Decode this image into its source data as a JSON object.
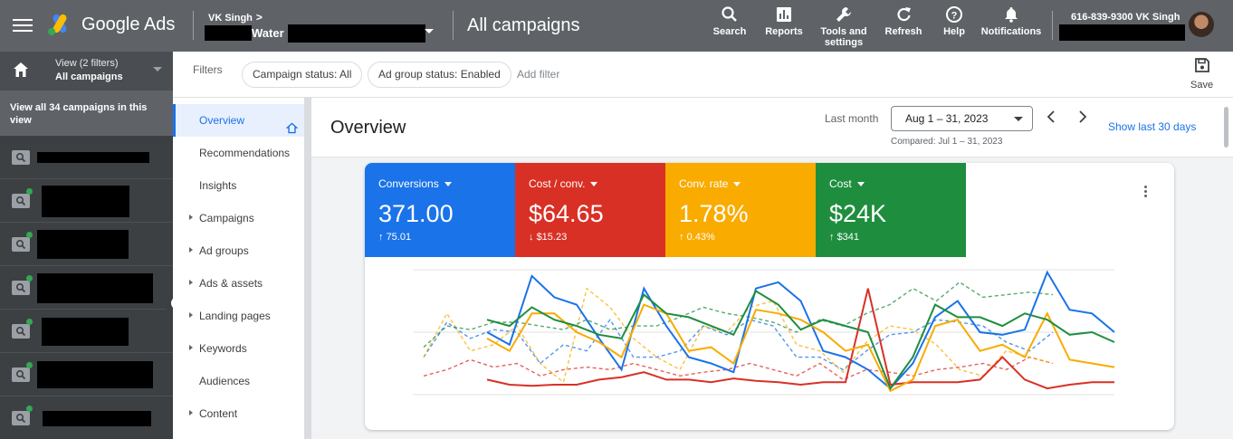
{
  "topbar": {
    "brand": "Google Ads",
    "account_name": "VK Singh",
    "account_sub": "Water",
    "page_title": "All campaigns",
    "tools": [
      {
        "label": "Search",
        "icon": "search-icon"
      },
      {
        "label": "Reports",
        "icon": "reports-icon"
      },
      {
        "label": "Tools and settings",
        "icon": "wrench-icon"
      },
      {
        "label": "Refresh",
        "icon": "refresh-icon"
      },
      {
        "label": "Help",
        "icon": "help-icon"
      },
      {
        "label": "Notifications",
        "icon": "bell-icon"
      }
    ],
    "user_line": "616-839-9300 VK Singh"
  },
  "sidebar": {
    "view_label": "View (2 filters)",
    "view_value": "All campaigns",
    "view_all": "View all 34 campaigns in this view"
  },
  "filters": {
    "label": "Filters",
    "chips": [
      "Campaign status: All",
      "Ad group status: Enabled"
    ],
    "add_filter": "Add filter",
    "save_label": "Save"
  },
  "nav": {
    "items": [
      {
        "label": "Overview",
        "active": true,
        "expandable": false
      },
      {
        "label": "Recommendations",
        "active": false,
        "expandable": false
      },
      {
        "label": "Insights",
        "active": false,
        "expandable": false
      },
      {
        "label": "Campaigns",
        "active": false,
        "expandable": true
      },
      {
        "label": "Ad groups",
        "active": false,
        "expandable": true
      },
      {
        "label": "Ads & assets",
        "active": false,
        "expandable": true
      },
      {
        "label": "Landing pages",
        "active": false,
        "expandable": true
      },
      {
        "label": "Keywords",
        "active": false,
        "expandable": true
      },
      {
        "label": "Audiences",
        "active": false,
        "expandable": false
      },
      {
        "label": "Content",
        "active": false,
        "expandable": true
      }
    ]
  },
  "overview": {
    "title": "Overview",
    "period_label": "Last month",
    "date_range": "Aug 1 – 31, 2023",
    "compared": "Compared: Jul 1 – 31, 2023",
    "show_last": "Show last 30 days"
  },
  "metrics": [
    {
      "name": "Conversions",
      "value": "371.00",
      "delta_arrow": "↑",
      "delta": "75.01",
      "color": "#1a73e8"
    },
    {
      "name": "Cost / conv.",
      "value": "$64.65",
      "delta_arrow": "↓",
      "delta": "$15.23",
      "color": "#d93025"
    },
    {
      "name": "Conv. rate",
      "value": "1.78%",
      "delta_arrow": "↑",
      "delta": "0.43%",
      "color": "#f9ab00"
    },
    {
      "name": "Cost",
      "value": "$24K",
      "delta_arrow": "↑",
      "delta": "$341",
      "color": "#1e8e3e"
    }
  ],
  "chart_data": {
    "type": "line",
    "y_range": [
      0,
      1
    ],
    "series": [
      {
        "color": "#1a73e8",
        "dashed": false,
        "values": [
          0.5,
          0.4,
          0.95,
          0.78,
          0.72,
          0.45,
          0.2,
          0.85,
          0.55,
          0.3,
          0.25,
          0.18,
          0.85,
          0.9,
          0.75,
          0.35,
          0.3,
          0.2,
          0.05,
          0.25,
          0.62,
          0.75,
          0.5,
          0.48,
          0.52,
          0.98,
          0.68,
          0.65,
          0.5
        ]
      },
      {
        "color": "#d93025",
        "dashed": false,
        "values": [
          0.12,
          0.08,
          0.07,
          0.08,
          0.08,
          0.12,
          0.14,
          0.18,
          0.12,
          0.12,
          0.1,
          0.13,
          0.11,
          0.1,
          0.08,
          0.1,
          0.1,
          0.85,
          0.08,
          0.1,
          0.1,
          0.1,
          0.12,
          0.3,
          0.12,
          0.05,
          0.08,
          0.1,
          0.1
        ]
      },
      {
        "color": "#f9ab00",
        "dashed": false,
        "values": [
          0.45,
          0.35,
          0.65,
          0.65,
          0.5,
          0.42,
          0.3,
          0.72,
          0.65,
          0.35,
          0.38,
          0.25,
          0.68,
          0.65,
          0.6,
          0.5,
          0.35,
          0.4,
          0.03,
          0.12,
          0.55,
          0.6,
          0.35,
          0.4,
          0.3,
          0.65,
          0.28,
          0.25,
          0.22
        ]
      },
      {
        "color": "#1e8e3e",
        "dashed": false,
        "values": [
          0.6,
          0.55,
          0.7,
          0.6,
          0.55,
          0.48,
          0.45,
          0.8,
          0.65,
          0.62,
          0.55,
          0.48,
          0.83,
          0.72,
          0.52,
          0.6,
          0.55,
          0.5,
          0.05,
          0.3,
          0.72,
          0.62,
          0.62,
          0.55,
          0.65,
          0.6,
          0.48,
          0.5,
          0.42
        ]
      },
      {
        "color": "#1a73e8",
        "dashed": true,
        "values": [
          0.3,
          0.58,
          0.45,
          0.52,
          0.5,
          0.25,
          0.4,
          0.35,
          0.6,
          0.3,
          0.3,
          0.35,
          0.55,
          0.48,
          0.6,
          0.55,
          0.3,
          0.3,
          0.2,
          0.35,
          0.48,
          0.5,
          0.6,
          0.58,
          0.55,
          0.42,
          0.35,
          0.5
        ]
      },
      {
        "color": "#d93025",
        "dashed": true,
        "values": [
          0.15,
          0.2,
          0.28,
          0.22,
          0.25,
          0.15,
          0.2,
          0.22,
          0.2,
          0.25,
          0.2,
          0.15,
          0.18,
          0.2,
          0.25,
          0.2,
          0.15,
          0.25,
          0.12,
          0.2,
          0.18,
          0.15,
          0.2,
          0.22,
          0.25,
          0.2,
          0.3,
          0.25
        ]
      },
      {
        "color": "#f9ab00",
        "dashed": true,
        "values": [
          0.3,
          0.65,
          0.35,
          0.4,
          0.55,
          0.25,
          0.1,
          0.85,
          0.7,
          0.45,
          0.3,
          0.2,
          0.55,
          0.5,
          0.7,
          0.75,
          0.4,
          0.35,
          0.18,
          0.42,
          0.55,
          0.52,
          0.4,
          0.2,
          0.15,
          0.35,
          0.3,
          0.25
        ]
      },
      {
        "color": "#1e8e3e",
        "dashed": true,
        "values": [
          0.38,
          0.55,
          0.52,
          0.58,
          0.58,
          0.55,
          0.52,
          0.6,
          0.52,
          0.55,
          0.55,
          0.62,
          0.7,
          0.65,
          0.62,
          0.58,
          0.5,
          0.6,
          0.55,
          0.65,
          0.72,
          0.85,
          0.75,
          0.9,
          0.78,
          0.8,
          0.82,
          0.8
        ]
      }
    ]
  }
}
